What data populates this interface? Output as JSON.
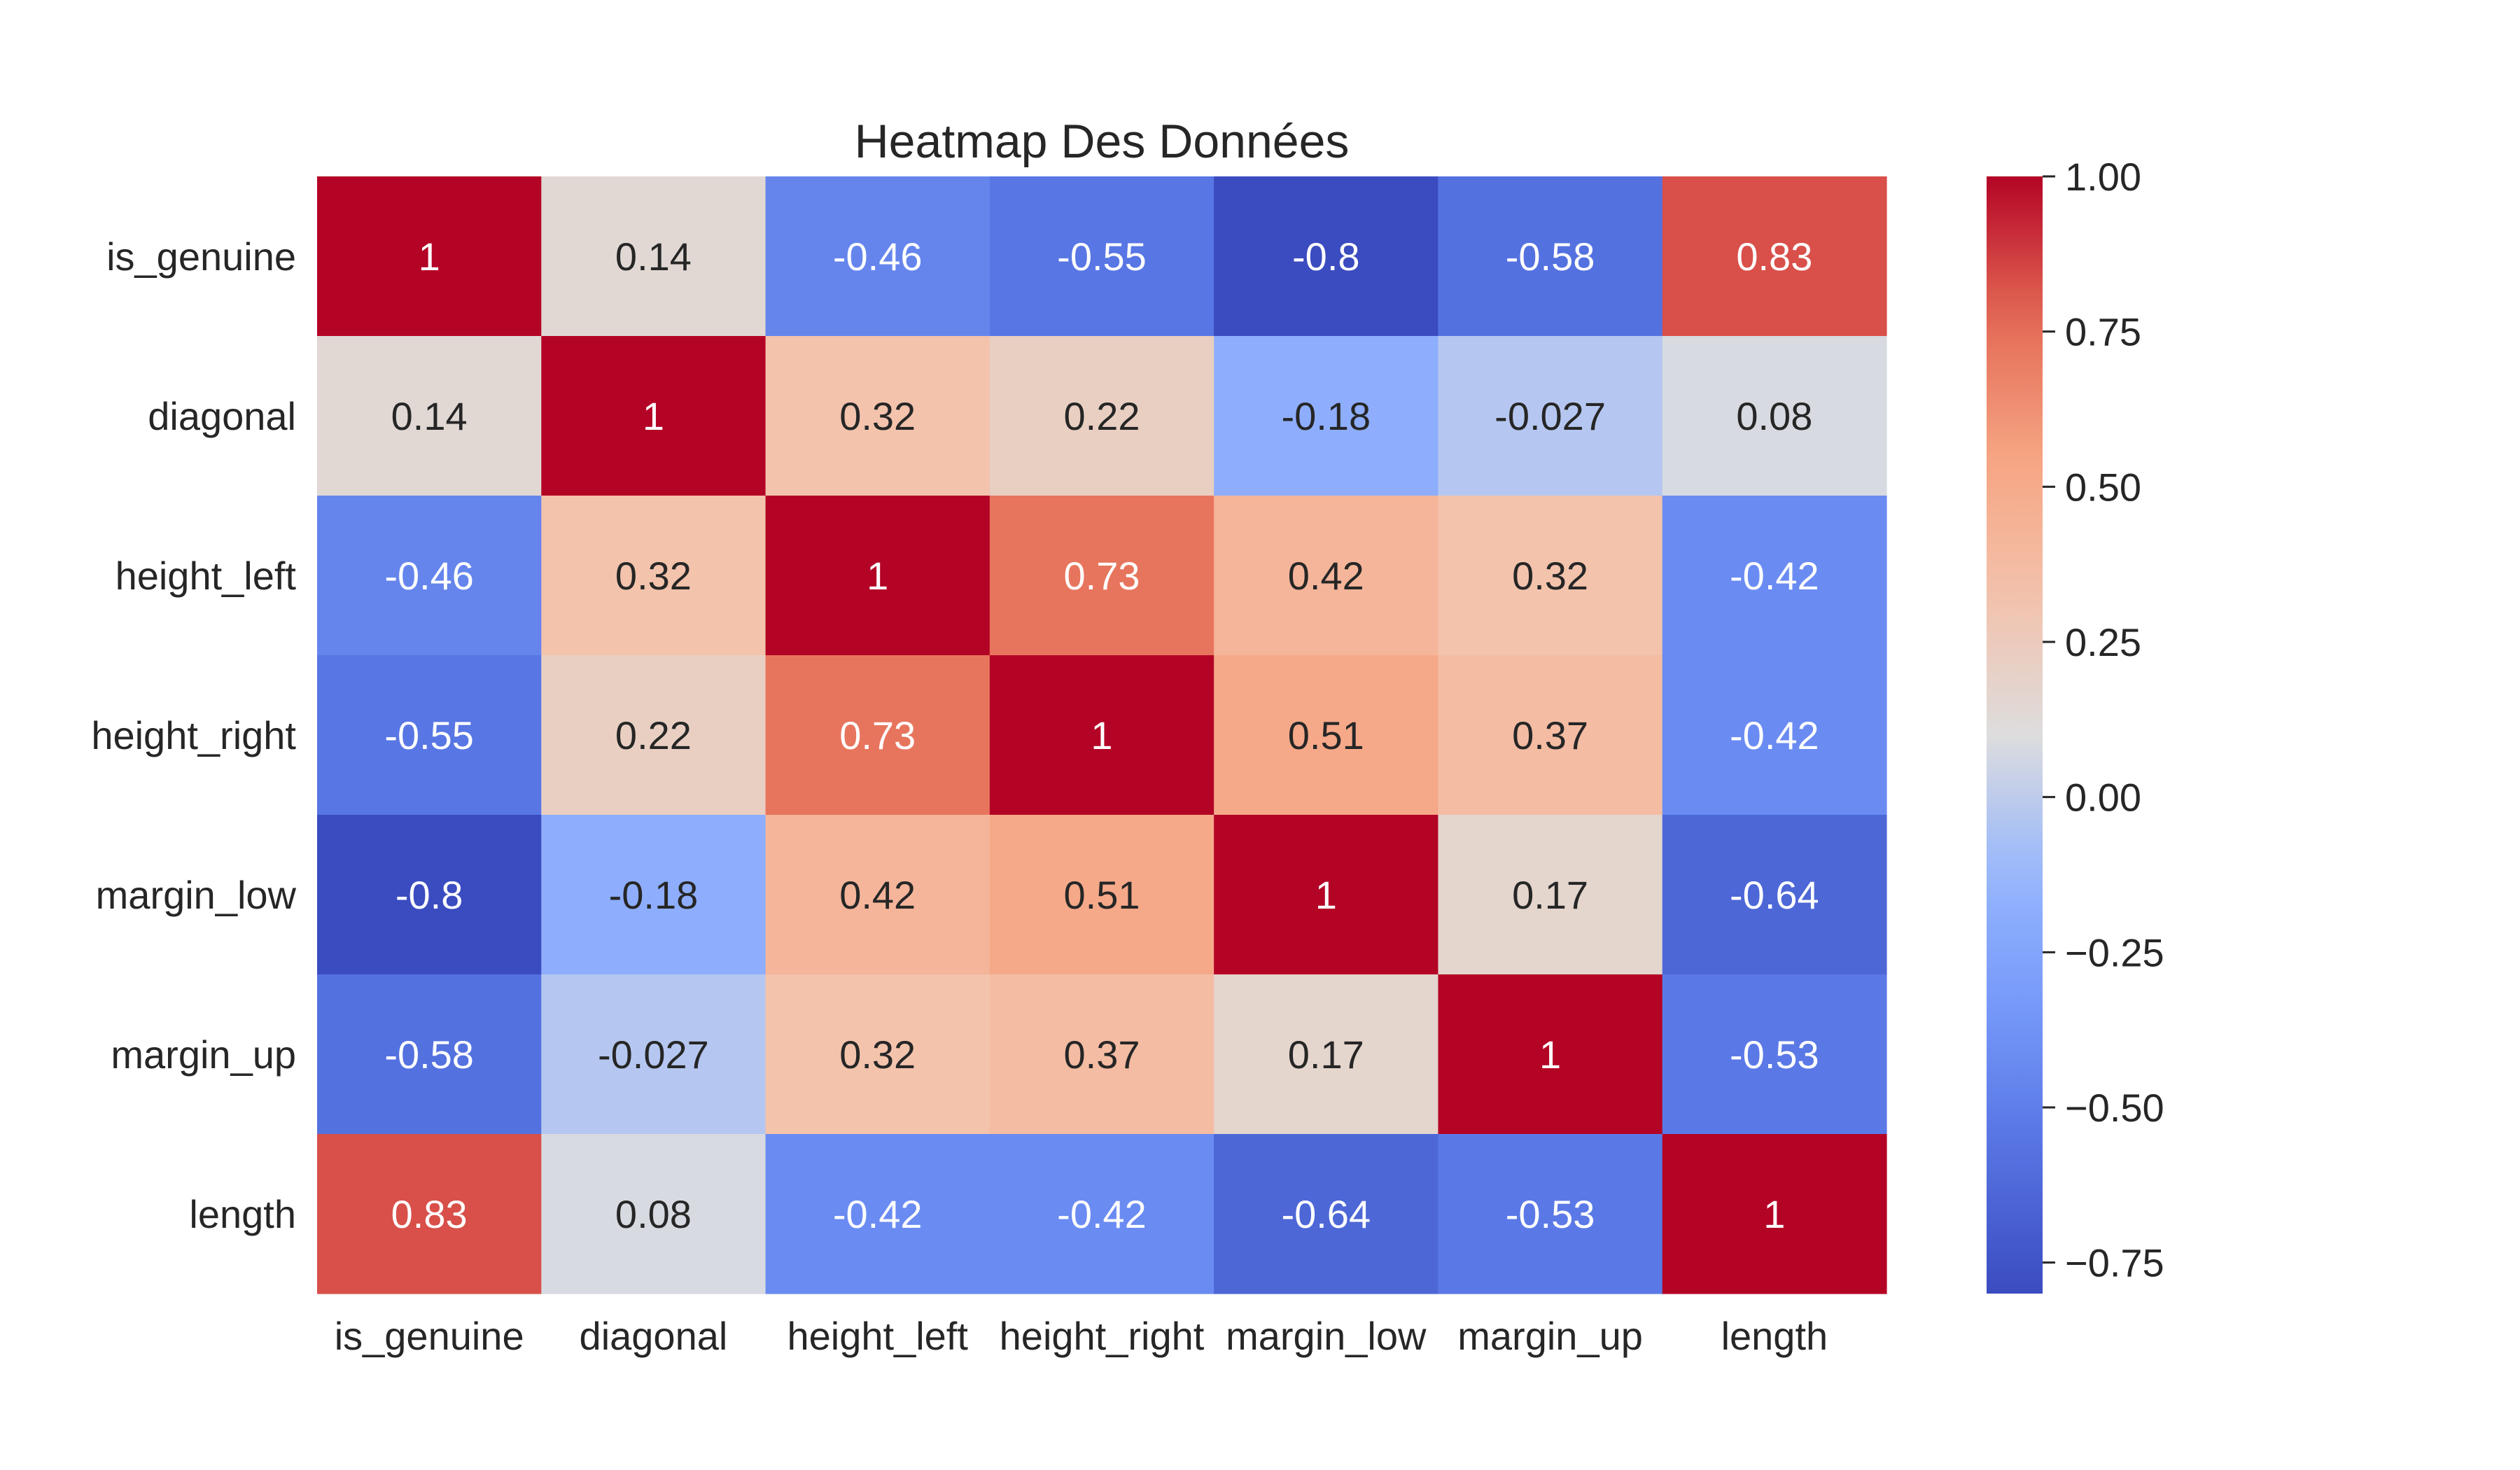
{
  "chart_data": {
    "type": "heatmap",
    "title": "Heatmap Des Données",
    "x_labels": [
      "is_genuine",
      "diagonal",
      "height_left",
      "height_right",
      "margin_low",
      "margin_up",
      "length"
    ],
    "y_labels": [
      "is_genuine",
      "diagonal",
      "height_left",
      "height_right",
      "margin_low",
      "margin_up",
      "length"
    ],
    "values": [
      [
        1,
        0.14,
        -0.46,
        -0.55,
        -0.8,
        -0.58,
        0.83
      ],
      [
        0.14,
        1,
        0.32,
        0.22,
        -0.18,
        -0.027,
        0.08
      ],
      [
        -0.46,
        0.32,
        1,
        0.73,
        0.42,
        0.32,
        -0.42
      ],
      [
        -0.55,
        0.22,
        0.73,
        1,
        0.51,
        0.37,
        -0.42
      ],
      [
        -0.8,
        -0.18,
        0.42,
        0.51,
        1,
        0.17,
        -0.64
      ],
      [
        -0.58,
        -0.027,
        0.32,
        0.37,
        0.17,
        1,
        -0.53
      ],
      [
        0.83,
        0.08,
        -0.42,
        -0.42,
        -0.64,
        -0.53,
        1
      ]
    ],
    "annotations": [
      [
        "1",
        "0.14",
        "-0.46",
        "-0.55",
        "-0.8",
        "-0.58",
        "0.83"
      ],
      [
        "0.14",
        "1",
        "0.32",
        "0.22",
        "-0.18",
        "-0.027",
        "0.08"
      ],
      [
        "-0.46",
        "0.32",
        "1",
        "0.73",
        "0.42",
        "0.32",
        "-0.42"
      ],
      [
        "-0.55",
        "0.22",
        "0.73",
        "1",
        "0.51",
        "0.37",
        "-0.42"
      ],
      [
        "-0.8",
        "-0.18",
        "0.42",
        "0.51",
        "1",
        "0.17",
        "-0.64"
      ],
      [
        "-0.58",
        "-0.027",
        "0.32",
        "0.37",
        "0.17",
        "1",
        "-0.53"
      ],
      [
        "0.83",
        "0.08",
        "-0.42",
        "-0.42",
        "-0.64",
        "-0.53",
        "1"
      ]
    ],
    "colormap": "coolwarm",
    "vmin": -0.8,
    "vmax": 1,
    "colorbar": {
      "ticks": [
        1.0,
        0.75,
        0.5,
        0.25,
        0.0,
        -0.25,
        -0.5,
        -0.75
      ],
      "tick_labels": [
        "1.00",
        "0.75",
        "0.50",
        "0.25",
        "0.00",
        "−0.25",
        "−0.50",
        "−0.75"
      ],
      "position": "right"
    },
    "grid": false
  }
}
